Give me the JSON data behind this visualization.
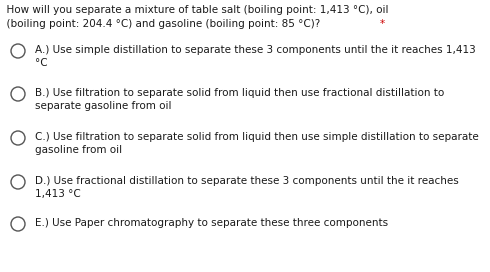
{
  "background_color": "#ffffff",
  "title_line1": "  How will you separate a mixture of table salt (boiling point: 1,413 °C), oil",
  "title_line2_main": "  (boiling point: 204.4 °C) and gasoline (boiling point: 85 °C)? ",
  "title_line2_star": "*",
  "title_color": "#1a1a1a",
  "asterisk_color": "#cc0000",
  "options": [
    {
      "lines": [
        "A.) Use simple distillation to separate these 3 components until the it reaches 1,413",
        "°C"
      ]
    },
    {
      "lines": [
        "B.) Use filtration to separate solid from liquid then use fractional distillation to",
        "separate gasoline from oil"
      ]
    },
    {
      "lines": [
        "C.) Use filtration to separate solid from liquid then use simple distillation to separate",
        "gasoline from oil"
      ]
    },
    {
      "lines": [
        "D.) Use fractional distillation to separate these 3 components until the it reaches",
        "1,413 °C"
      ]
    },
    {
      "lines": [
        "E.) Use Paper chromatography to separate these three components"
      ]
    }
  ],
  "option_text_color": "#1a1a1a",
  "circle_color": "#555555",
  "font_size_title": 7.5,
  "font_size_options": 7.5,
  "fig_width": 4.9,
  "fig_height": 2.72,
  "dpi": 100
}
